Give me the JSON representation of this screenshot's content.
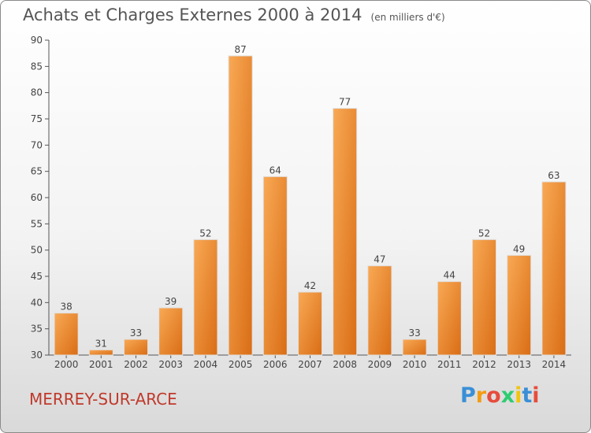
{
  "chart_data": {
    "type": "bar",
    "title": "Achats et Charges Externes 2000 à 2014",
    "subtitle": "(en milliers d'€)",
    "categories": [
      "2000",
      "2001",
      "2002",
      "2003",
      "2004",
      "2005",
      "2006",
      "2007",
      "2008",
      "2009",
      "2010",
      "2011",
      "2012",
      "2013",
      "2014"
    ],
    "values": [
      38,
      31,
      33,
      39,
      52,
      87,
      64,
      42,
      77,
      47,
      33,
      44,
      52,
      49,
      63
    ],
    "ylim": [
      30,
      90
    ],
    "yticks": [
      30,
      35,
      40,
      45,
      50,
      55,
      60,
      65,
      70,
      75,
      80,
      85,
      90
    ],
    "grid": false,
    "xlabel": "",
    "ylabel": "",
    "bar_color": "#f0933a"
  },
  "footer": {
    "commune": "MERREY-SUR-ARCE",
    "commune_color": "#c0392b"
  },
  "logo": {
    "text": "Proxiti",
    "letter_colors": [
      "#3a8fd6",
      "#f39c12",
      "#e74c3c",
      "#2ecc71",
      "#f1c40f",
      "#3a8fd6",
      "#e74c3c"
    ]
  }
}
